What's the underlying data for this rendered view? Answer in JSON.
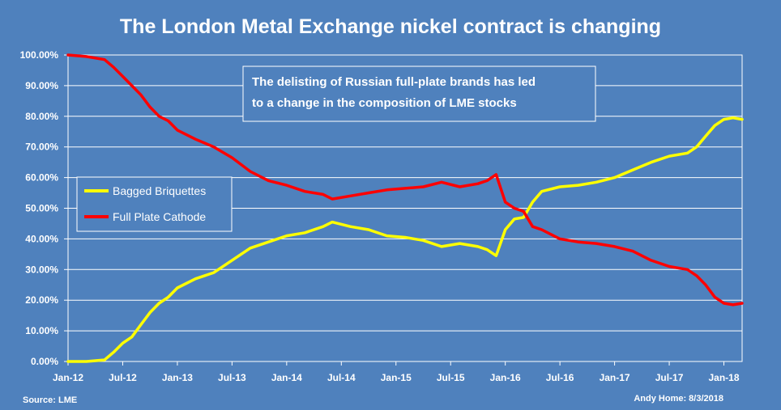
{
  "chart_data": {
    "type": "line",
    "title": "The London Metal Exchange nickel contract is changing",
    "ylim": [
      0,
      100
    ],
    "y_ticks": [
      "0.00%",
      "10.00%",
      "20.00%",
      "30.00%",
      "40.00%",
      "50.00%",
      "60.00%",
      "70.00%",
      "80.00%",
      "90.00%",
      "100.00%"
    ],
    "x_ticks": [
      "Jan-12",
      "Jul-12",
      "Jan-13",
      "Jul-13",
      "Jan-14",
      "Jul-14",
      "Jan-15",
      "Jul-15",
      "Jan-16",
      "Jul-16",
      "Jan-17",
      "Jul-17",
      "Jan-18"
    ],
    "xlim": [
      "2012-01",
      "2018-03"
    ],
    "grid": true,
    "series": [
      {
        "name": "Bagged Briquettes",
        "color": "#ffff00",
        "x": [
          "2012-01",
          "2012-03",
          "2012-05",
          "2012-06",
          "2012-07",
          "2012-08",
          "2012-09",
          "2012-10",
          "2012-11",
          "2012-12",
          "2013-01",
          "2013-03",
          "2013-05",
          "2013-07",
          "2013-09",
          "2013-11",
          "2014-01",
          "2014-03",
          "2014-05",
          "2014-06",
          "2014-08",
          "2014-10",
          "2014-12",
          "2015-02",
          "2015-04",
          "2015-06",
          "2015-08",
          "2015-10",
          "2015-11",
          "2015-12",
          "2016-01",
          "2016-02",
          "2016-03",
          "2016-04",
          "2016-05",
          "2016-07",
          "2016-09",
          "2016-11",
          "2017-01",
          "2017-03",
          "2017-05",
          "2017-07",
          "2017-09",
          "2017-10",
          "2017-11",
          "2017-12",
          "2018-01",
          "2018-02",
          "2018-03"
        ],
        "values": [
          0,
          0,
          0.5,
          3,
          6,
          8,
          12,
          16,
          19,
          21,
          24,
          27,
          29,
          33,
          37,
          39,
          41,
          42,
          44,
          45.5,
          44,
          43,
          41,
          40.5,
          39.5,
          37.5,
          38.5,
          37.5,
          36.5,
          34.5,
          43,
          46.5,
          47,
          52,
          55.5,
          57,
          57.5,
          58.5,
          60,
          62.5,
          65,
          67,
          68,
          70,
          73.5,
          77,
          79,
          79.5,
          79
        ]
      },
      {
        "name": "Full Plate Cathode",
        "color": "#ff0000",
        "x": [
          "2012-01",
          "2012-03",
          "2012-05",
          "2012-06",
          "2012-07",
          "2012-08",
          "2012-09",
          "2012-10",
          "2012-11",
          "2012-12",
          "2013-01",
          "2013-03",
          "2013-05",
          "2013-07",
          "2013-09",
          "2013-11",
          "2014-01",
          "2014-03",
          "2014-05",
          "2014-06",
          "2014-08",
          "2014-10",
          "2014-12",
          "2015-02",
          "2015-04",
          "2015-06",
          "2015-08",
          "2015-10",
          "2015-11",
          "2015-12",
          "2016-01",
          "2016-02",
          "2016-03",
          "2016-04",
          "2016-05",
          "2016-07",
          "2016-09",
          "2016-11",
          "2017-01",
          "2017-03",
          "2017-05",
          "2017-07",
          "2017-09",
          "2017-10",
          "2017-11",
          "2017-12",
          "2018-01",
          "2018-02",
          "2018-03"
        ],
        "values": [
          100,
          99.5,
          98.5,
          96,
          93,
          90,
          87,
          83,
          80,
          78.5,
          75.5,
          72.5,
          70,
          66.5,
          62,
          59,
          57.5,
          55.5,
          54.5,
          53,
          54,
          55,
          56,
          56.5,
          57,
          58.5,
          57,
          58,
          59,
          61,
          52,
          50,
          49,
          44,
          43,
          40,
          39,
          38.5,
          37.5,
          36,
          33,
          31,
          30,
          28,
          25,
          21,
          19,
          18.5,
          19
        ]
      }
    ],
    "legend": {
      "position": "middle-left",
      "entries": [
        "Bagged Briquettes",
        "Full Plate Cathode"
      ]
    },
    "annotation": [
      "The delisting of Russian full-plate brands has led",
      "to a change in the composition of LME stocks"
    ],
    "footer": {
      "source": "Source: LME",
      "author": "Andy Home: 8/3/2018"
    }
  }
}
